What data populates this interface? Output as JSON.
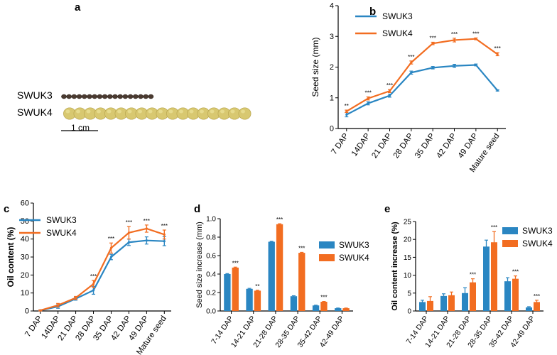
{
  "panel_a": {
    "letter": "a",
    "rows": [
      "SWUK3",
      "SWUK4"
    ],
    "scale_label": "1 cm",
    "colors": {
      "swuk3_seed": "#4a3a30",
      "swuk4_seed": "#d8c870"
    }
  },
  "colors": {
    "SWUK3": "#2a86c2",
    "SWUK4": "#f26d21"
  },
  "chart_data": [
    {
      "id": "b",
      "letter": "b",
      "type": "line",
      "categories": [
        "7 DAP",
        "14DAP",
        "21 DAP",
        "28 DAP",
        "35 DAP",
        "42 DAP",
        "49 DAP",
        "Mature seed"
      ],
      "series": [
        {
          "name": "SWUK3",
          "values": [
            0.45,
            0.82,
            1.07,
            1.82,
            1.98,
            2.04,
            2.07,
            1.24
          ],
          "errors": [
            0.07,
            0.05,
            0.05,
            0.05,
            0.04,
            0.05,
            0.03,
            0.02
          ]
        },
        {
          "name": "SWUK4",
          "values": [
            0.56,
            0.98,
            1.22,
            2.15,
            2.77,
            2.88,
            2.92,
            2.42
          ],
          "errors": [
            0.04,
            0.05,
            0.05,
            0.05,
            0.04,
            0.06,
            0.03,
            0.05
          ]
        }
      ],
      "sig": [
        "**",
        "***",
        "***",
        "***",
        "***",
        "***",
        "***",
        "***"
      ],
      "ylabel": "Seed size (mm)",
      "xlabel": "",
      "ylim": [
        0,
        4
      ],
      "yticks": [
        0,
        1,
        2,
        3,
        4
      ],
      "legend": "top-left"
    },
    {
      "id": "c",
      "letter": "c",
      "type": "line",
      "categories": [
        "7 DAP",
        "14DAP",
        "21 DAP",
        "28 DAP",
        "35 DAP",
        "42 DAP",
        "49 DAP",
        "Mature seed"
      ],
      "series": [
        {
          "name": "SWUK3",
          "values": [
            0.3,
            2.5,
            6.8,
            11.5,
            30.0,
            38.2,
            39.2,
            38.8
          ],
          "errors": [
            0.3,
            1.0,
            0.8,
            2.2,
            1.5,
            1.8,
            2.0,
            2.5
          ]
        },
        {
          "name": "SWUK4",
          "values": [
            0.3,
            3.2,
            7.3,
            15.0,
            35.0,
            43.5,
            45.8,
            42.5
          ],
          "errors": [
            0.3,
            1.0,
            0.8,
            2.0,
            2.8,
            3.5,
            2.0,
            2.5
          ]
        }
      ],
      "sig": [
        "",
        "",
        "",
        "***",
        "***",
        "***",
        "***",
        "***"
      ],
      "ylabel": "Oil content (%)",
      "xlabel": "",
      "ylim": [
        0,
        60
      ],
      "yticks": [
        0,
        10,
        20,
        30,
        40,
        50,
        60
      ],
      "legend": "top-left"
    },
    {
      "id": "d",
      "letter": "d",
      "type": "bar",
      "categories": [
        "7-14 DAP",
        "14-21 DAP",
        "21-28 DAP",
        "28-35 DAP",
        "35-42 DAP",
        "42-49 DAP"
      ],
      "series": [
        {
          "name": "SWUK3",
          "values": [
            0.4,
            0.24,
            0.75,
            0.16,
            0.06,
            0.03
          ],
          "errors": [
            0.005,
            0.005,
            0.005,
            0.005,
            0.003,
            0.002
          ]
        },
        {
          "name": "SWUK4",
          "values": [
            0.47,
            0.22,
            0.94,
            0.63,
            0.1,
            0.03
          ],
          "errors": [
            0.005,
            0.005,
            0.005,
            0.005,
            0.003,
            0.002
          ]
        }
      ],
      "sig": [
        "***",
        "**",
        "***",
        "***",
        "***",
        ""
      ],
      "ylabel": "Seed size increase (mm)",
      "xlabel": "",
      "ylim": [
        0,
        1.0
      ],
      "yticks": [
        0,
        0.2,
        0.4,
        0.6,
        0.8,
        1.0
      ],
      "ytick_labels": [
        "0.0",
        "0.2",
        "0.4",
        "0.6",
        "0.8",
        "1.0"
      ],
      "legend": "top-right"
    },
    {
      "id": "e",
      "letter": "e",
      "type": "bar",
      "categories": [
        "7-14 DAP",
        "14-21 DAP",
        "21-28 DAP",
        "28-35 DAP",
        "35-42 DAP",
        "42-49 DAP"
      ],
      "series": [
        {
          "name": "SWUK3",
          "values": [
            2.5,
            4.2,
            5.0,
            18.0,
            8.3,
            1.0
          ],
          "errors": [
            0.5,
            0.6,
            1.5,
            1.8,
            1.0,
            0.2
          ]
        },
        {
          "name": "SWUK4",
          "values": [
            2.8,
            4.4,
            8.0,
            19.2,
            9.0,
            2.5
          ],
          "errors": [
            1.2,
            0.9,
            1.0,
            3.0,
            0.8,
            0.5
          ]
        }
      ],
      "sig": [
        "",
        "",
        "***",
        "***",
        "***",
        "***"
      ],
      "ylabel": "Oil content increase (%)",
      "xlabel": "",
      "ylim": [
        0,
        25
      ],
      "yticks": [
        0,
        5,
        10,
        15,
        20,
        25
      ],
      "legend": "top-right"
    }
  ]
}
